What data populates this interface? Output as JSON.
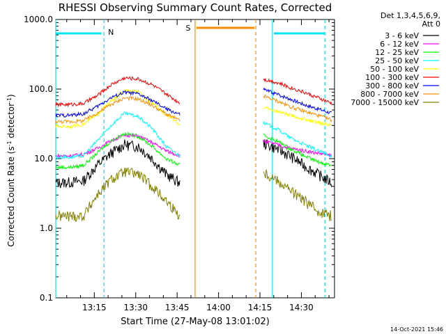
{
  "chart_data": {
    "type": "line",
    "title": "RHESSI Observing Summary Count Rates, Corrected",
    "xlabel": "Start Time (27-May-08 13:01:02)",
    "ylabel_main": "Corrected Count Rate (s",
    "ylabel_sup1": "-1",
    "ylabel_mid": " detector",
    "ylabel_sup2": "-1",
    "ylabel_end": ")",
    "y_scale": "log",
    "ylim": [
      0.1,
      1000.0
    ],
    "xlim": [
      "13:01:02",
      "14:42:00"
    ],
    "x_ticks": [
      "13:15",
      "13:30",
      "13:45",
      "14:00",
      "14:15",
      "14:30"
    ],
    "y_ticks": [
      "0.1",
      "1.0",
      "10.0",
      "100.0",
      "1000.0"
    ],
    "legend_header": [
      "Det 1,3,4,5,6,9,",
      "Att 0"
    ],
    "legend_placement": "top-right outside",
    "footer": "14-Oct-2021 15:46",
    "flags": [
      {
        "label": "N",
        "color": "#00e5ee"
      },
      {
        "label": "S",
        "color": "#ff8c00"
      }
    ],
    "time_axis": [
      "13:01",
      "13:06",
      "13:11",
      "13:16",
      "13:21",
      "13:26",
      "13:31",
      "13:36",
      "13:41",
      "13:46",
      "13:51",
      "13:56",
      "14:01",
      "14:06",
      "14:11",
      "14:16",
      "14:21",
      "14:26",
      "14:31",
      "14:36",
      "14:41"
    ],
    "series": [
      {
        "name": "3 - 6 keV",
        "color": "#000000",
        "values": [
          4.5,
          4.6,
          4.8,
          8.0,
          12.0,
          16.0,
          15.0,
          10.0,
          6.0,
          4.5,
          null,
          null,
          null,
          null,
          null,
          17.0,
          14.0,
          11.0,
          8.0,
          6.0,
          4.5
        ]
      },
      {
        "name": "6 - 12 keV",
        "color": "#ff00ff",
        "values": [
          11.0,
          11.0,
          11.5,
          14.0,
          18.0,
          22.0,
          21.0,
          17.0,
          13.0,
          11.0,
          null,
          null,
          null,
          null,
          null,
          18.0,
          16.0,
          14.0,
          13.0,
          12.0,
          11.0
        ]
      },
      {
        "name": "12 - 25 keV",
        "color": "#00ff00",
        "values": [
          7.5,
          7.5,
          8.0,
          12.0,
          18.0,
          23.0,
          21.0,
          15.0,
          10.0,
          8.0,
          null,
          null,
          null,
          null,
          null,
          22.0,
          18.0,
          14.0,
          11.0,
          9.0,
          8.0
        ]
      },
      {
        "name": "25 - 50 keV",
        "color": "#00ffff",
        "values": [
          10.5,
          10.5,
          11.0,
          18.0,
          30.0,
          45.0,
          40.0,
          27.0,
          15.0,
          11.0,
          null,
          null,
          null,
          null,
          null,
          33.0,
          27.0,
          20.0,
          16.0,
          13.0,
          11.0
        ]
      },
      {
        "name": "50 - 100 keV",
        "color": "#ffff00",
        "values": [
          29.0,
          29.0,
          31.0,
          43.0,
          66.0,
          95.0,
          90.0,
          65.0,
          42.0,
          31.0,
          null,
          null,
          null,
          null,
          null,
          55.0,
          48.0,
          42.0,
          37.0,
          33.0,
          30.0
        ]
      },
      {
        "name": "100 - 300 keV",
        "color": "#ff0000",
        "values": [
          60.0,
          60.0,
          62.0,
          80.0,
          115.0,
          145.0,
          140.0,
          115.0,
          85.0,
          63.0,
          null,
          null,
          null,
          null,
          null,
          140.0,
          125.0,
          105.0,
          90.0,
          75.0,
          62.0
        ]
      },
      {
        "name": "300 - 800 keV",
        "color": "#0000ff",
        "values": [
          42.0,
          42.0,
          44.0,
          56.0,
          75.0,
          90.0,
          85.0,
          68.0,
          52.0,
          43.0,
          null,
          null,
          null,
          null,
          null,
          100.0,
          85.0,
          72.0,
          60.0,
          52.0,
          45.0
        ]
      },
      {
        "name": "800 - 7000 keV",
        "color": "#ff8c00",
        "values": [
          34.0,
          34.0,
          35.0,
          45.0,
          60.0,
          75.0,
          72.0,
          58.0,
          44.0,
          35.0,
          null,
          null,
          null,
          null,
          null,
          80.0,
          68.0,
          56.0,
          48.0,
          42.0,
          36.0
        ]
      },
      {
        "name": "7000 - 15000 keV",
        "color": "#808000",
        "values": [
          1.5,
          1.5,
          1.5,
          3.0,
          5.0,
          6.5,
          6.0,
          4.0,
          2.5,
          1.5,
          null,
          null,
          null,
          null,
          null,
          6.5,
          5.0,
          3.5,
          2.5,
          1.8,
          1.5
        ]
      }
    ]
  }
}
